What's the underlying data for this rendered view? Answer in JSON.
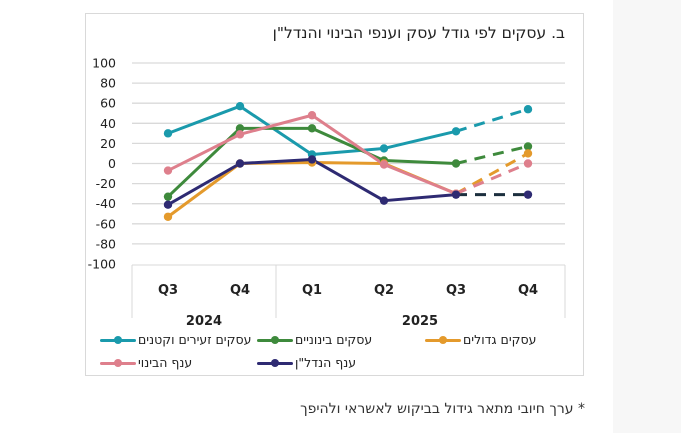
{
  "side_panel": {
    "color": "#f7f7f7"
  },
  "chart_data": {
    "type": "line",
    "title": "ב. עסקים לפי גודל עסק וענפי הבינוי והנדל\"ן",
    "xlabel": "",
    "ylabel": "",
    "ylim": [
      -100,
      100
    ],
    "yticks": [
      100,
      80,
      60,
      40,
      20,
      0,
      -20,
      -40,
      -60,
      -80,
      -100
    ],
    "grid": true,
    "categories": [
      "Q3",
      "Q4",
      "Q1",
      "Q2",
      "Q3",
      "Q4"
    ],
    "groups": [
      {
        "label": "2024",
        "span": [
          0,
          1
        ]
      },
      {
        "label": "2025",
        "span": [
          2,
          5
        ]
      }
    ],
    "forecast_from_index": 4,
    "legend_position": "bottom",
    "series": [
      {
        "name": "עסקים זעירים וקטנים",
        "color": "#1a9aac",
        "values": [
          30,
          57,
          9,
          15,
          32,
          54
        ]
      },
      {
        "name": "עסקים בינוניים",
        "color": "#3e8a3c",
        "values": [
          -33,
          35,
          35,
          3,
          0,
          17
        ]
      },
      {
        "name": "עסקים גדולים",
        "color": "#e49a2c",
        "values": [
          -53,
          0,
          1,
          0,
          -30,
          10
        ]
      },
      {
        "name": "ענף הבינוי",
        "color": "#de7f8c",
        "values": [
          -7,
          29,
          48,
          -1,
          -30,
          0
        ]
      },
      {
        "name": "ענף הנדל\"ן",
        "color": "#2e2a72",
        "values": [
          -41,
          0,
          4,
          -37,
          -31,
          -31
        ],
        "forecast_color": "#1c2f3e"
      }
    ]
  },
  "footnote": "* ערך חיובי מתאר גידול בביקוש לאשראי ולהיפך"
}
